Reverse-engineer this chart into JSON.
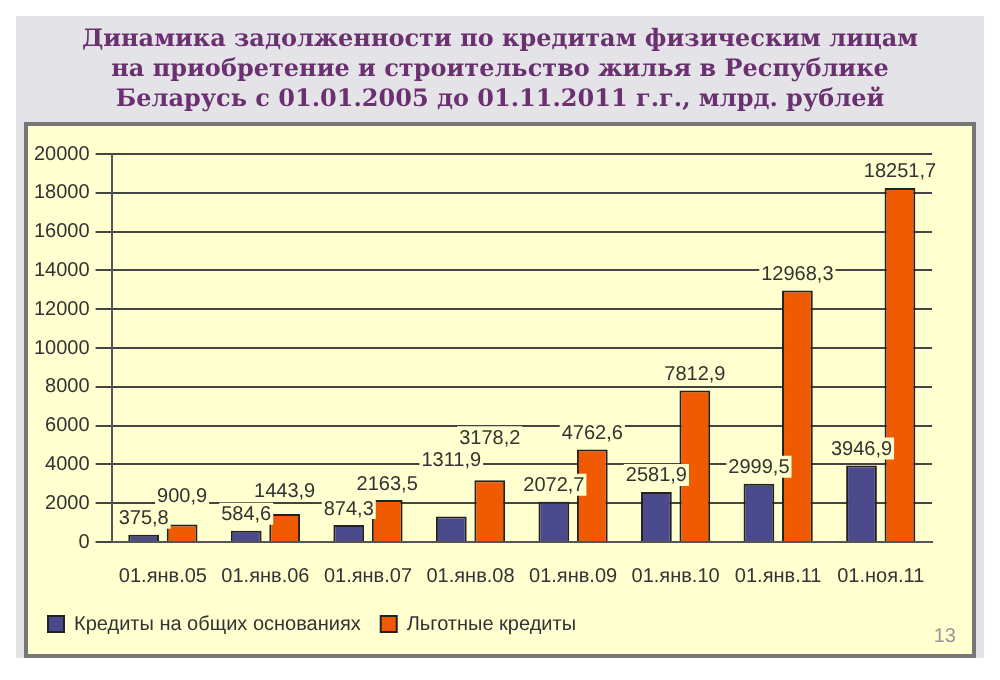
{
  "chart_data": {
    "type": "bar",
    "title": "Динамика задолженности по кредитам физическим лицам на приобретение и строительство жилья в Республике Беларусь с 01.01.2005 до 01.11.2011 г.г., млрд. рублей",
    "categories": [
      "01.янв.05",
      "01.янв.06",
      "01.янв.07",
      "01.янв.08",
      "01.янв.09",
      "01.янв.10",
      "01.янв.11",
      "01.ноя.11"
    ],
    "series": [
      {
        "name": "Кредиты на общих основаниях",
        "color": "#4a4a8c",
        "values": [
          375.8,
          584.6,
          874.3,
          1311.9,
          2072.7,
          2581.9,
          2999.5,
          3946.9
        ],
        "value_labels": [
          "375,8",
          "584,6",
          "874,3",
          "1311,9",
          "2072,7",
          "2581,9",
          "2999,5",
          "3946,9"
        ]
      },
      {
        "name": "Льготные кредиты",
        "color": "#f05a00",
        "values": [
          900.9,
          1443.9,
          2163.5,
          3178.2,
          4762.6,
          7812.9,
          12968.3,
          18251.7
        ],
        "value_labels": [
          "900,9",
          "1443,9",
          "2163,5",
          "3178,2",
          "4762,6",
          "7812,9",
          "12968,3",
          "18251,7"
        ]
      }
    ],
    "ylim": [
      0,
      20000
    ],
    "yticks": [
      0,
      2000,
      4000,
      6000,
      8000,
      10000,
      12000,
      14000,
      16000,
      18000,
      20000
    ],
    "grid": "y",
    "legend": "bottom left",
    "annotations": [
      "13"
    ]
  }
}
